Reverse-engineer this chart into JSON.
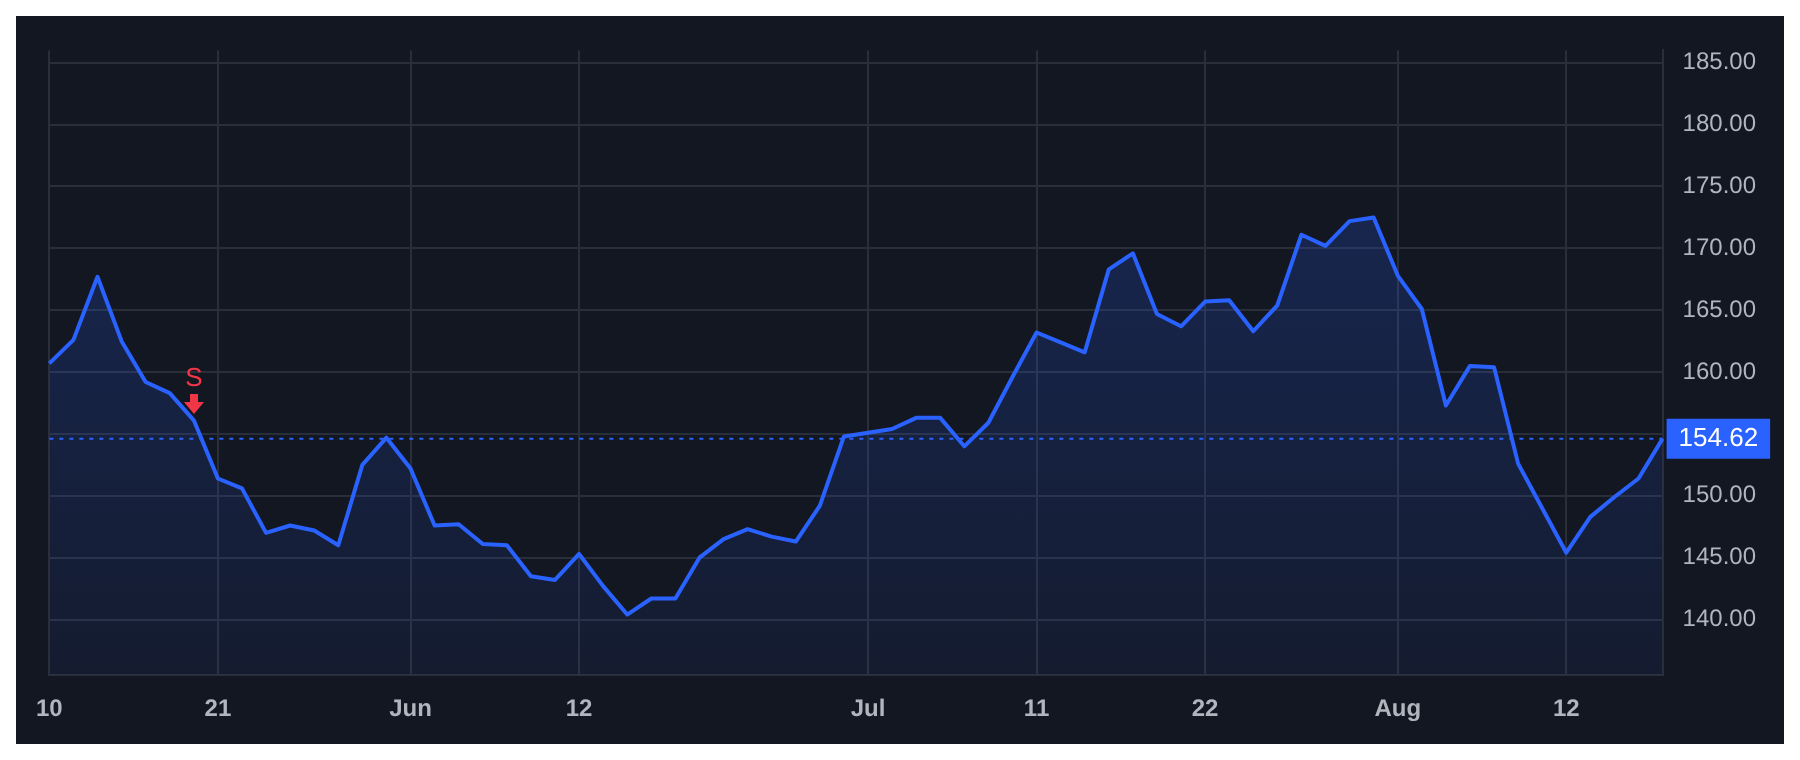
{
  "chart_data": {
    "type": "area",
    "categories": [
      "10",
      null,
      null,
      null,
      null,
      null,
      null,
      "21",
      null,
      null,
      null,
      null,
      null,
      null,
      null,
      "Jun",
      null,
      null,
      null,
      null,
      null,
      null,
      "12",
      null,
      null,
      null,
      null,
      null,
      null,
      null,
      null,
      null,
      null,
      null,
      "Jul",
      null,
      null,
      null,
      null,
      null,
      null,
      "11",
      null,
      null,
      null,
      null,
      null,
      null,
      "22",
      null,
      null,
      null,
      null,
      null,
      null,
      null,
      "Aug",
      null,
      null,
      null,
      null,
      null,
      null,
      "12",
      null,
      null,
      null,
      null
    ],
    "series": [
      {
        "color": "#2962ff",
        "values": [
          160.7,
          162.6,
          167.7,
          162.5,
          159.2,
          158.3,
          156.1,
          151.4,
          150.6,
          147.0,
          147.6,
          147.2,
          146.0,
          152.5,
          154.7,
          152.2,
          147.6,
          147.7,
          146.1,
          146.0,
          143.5,
          143.2,
          145.3,
          142.7,
          140.4,
          141.7,
          141.7,
          145.0,
          146.5,
          147.3,
          146.7,
          146.3,
          149.2,
          154.8,
          155.1,
          155.4,
          156.3,
          156.3,
          154.0,
          155.9,
          159.6,
          163.2,
          162.4,
          161.6,
          168.3,
          169.6,
          164.7,
          163.7,
          165.7,
          165.8,
          163.3,
          165.4,
          171.1,
          170.2,
          172.2,
          172.5,
          167.8,
          165.1,
          157.3,
          160.5,
          160.4,
          152.6,
          149.0,
          145.4,
          148.3,
          149.9,
          151.4,
          154.62
        ]
      }
    ],
    "ylim": [
      135.5,
      186
    ],
    "yticks": [
      {
        "value": 140,
        "label": "140.00"
      },
      {
        "value": 145,
        "label": "145.00"
      },
      {
        "value": 150,
        "label": "150.00"
      },
      {
        "value": 155,
        "label": null
      },
      {
        "value": 160,
        "label": "160.00"
      },
      {
        "value": 165,
        "label": "165.00"
      },
      {
        "value": 170,
        "label": "170.00"
      },
      {
        "value": 175,
        "label": "175.00"
      },
      {
        "value": 180,
        "label": "180.00"
      },
      {
        "value": 185,
        "label": "185.00"
      }
    ],
    "ref_lines": [
      {
        "axis": "y",
        "value": 154.62,
        "label": "154.62",
        "color": "#2962ff",
        "line_style": "dotted"
      }
    ],
    "annotations": [
      {
        "text": "S",
        "y": 156.1
      }
    ],
    "grid": true,
    "legend": false,
    "marker": "none",
    "line_style": "solid"
  }
}
